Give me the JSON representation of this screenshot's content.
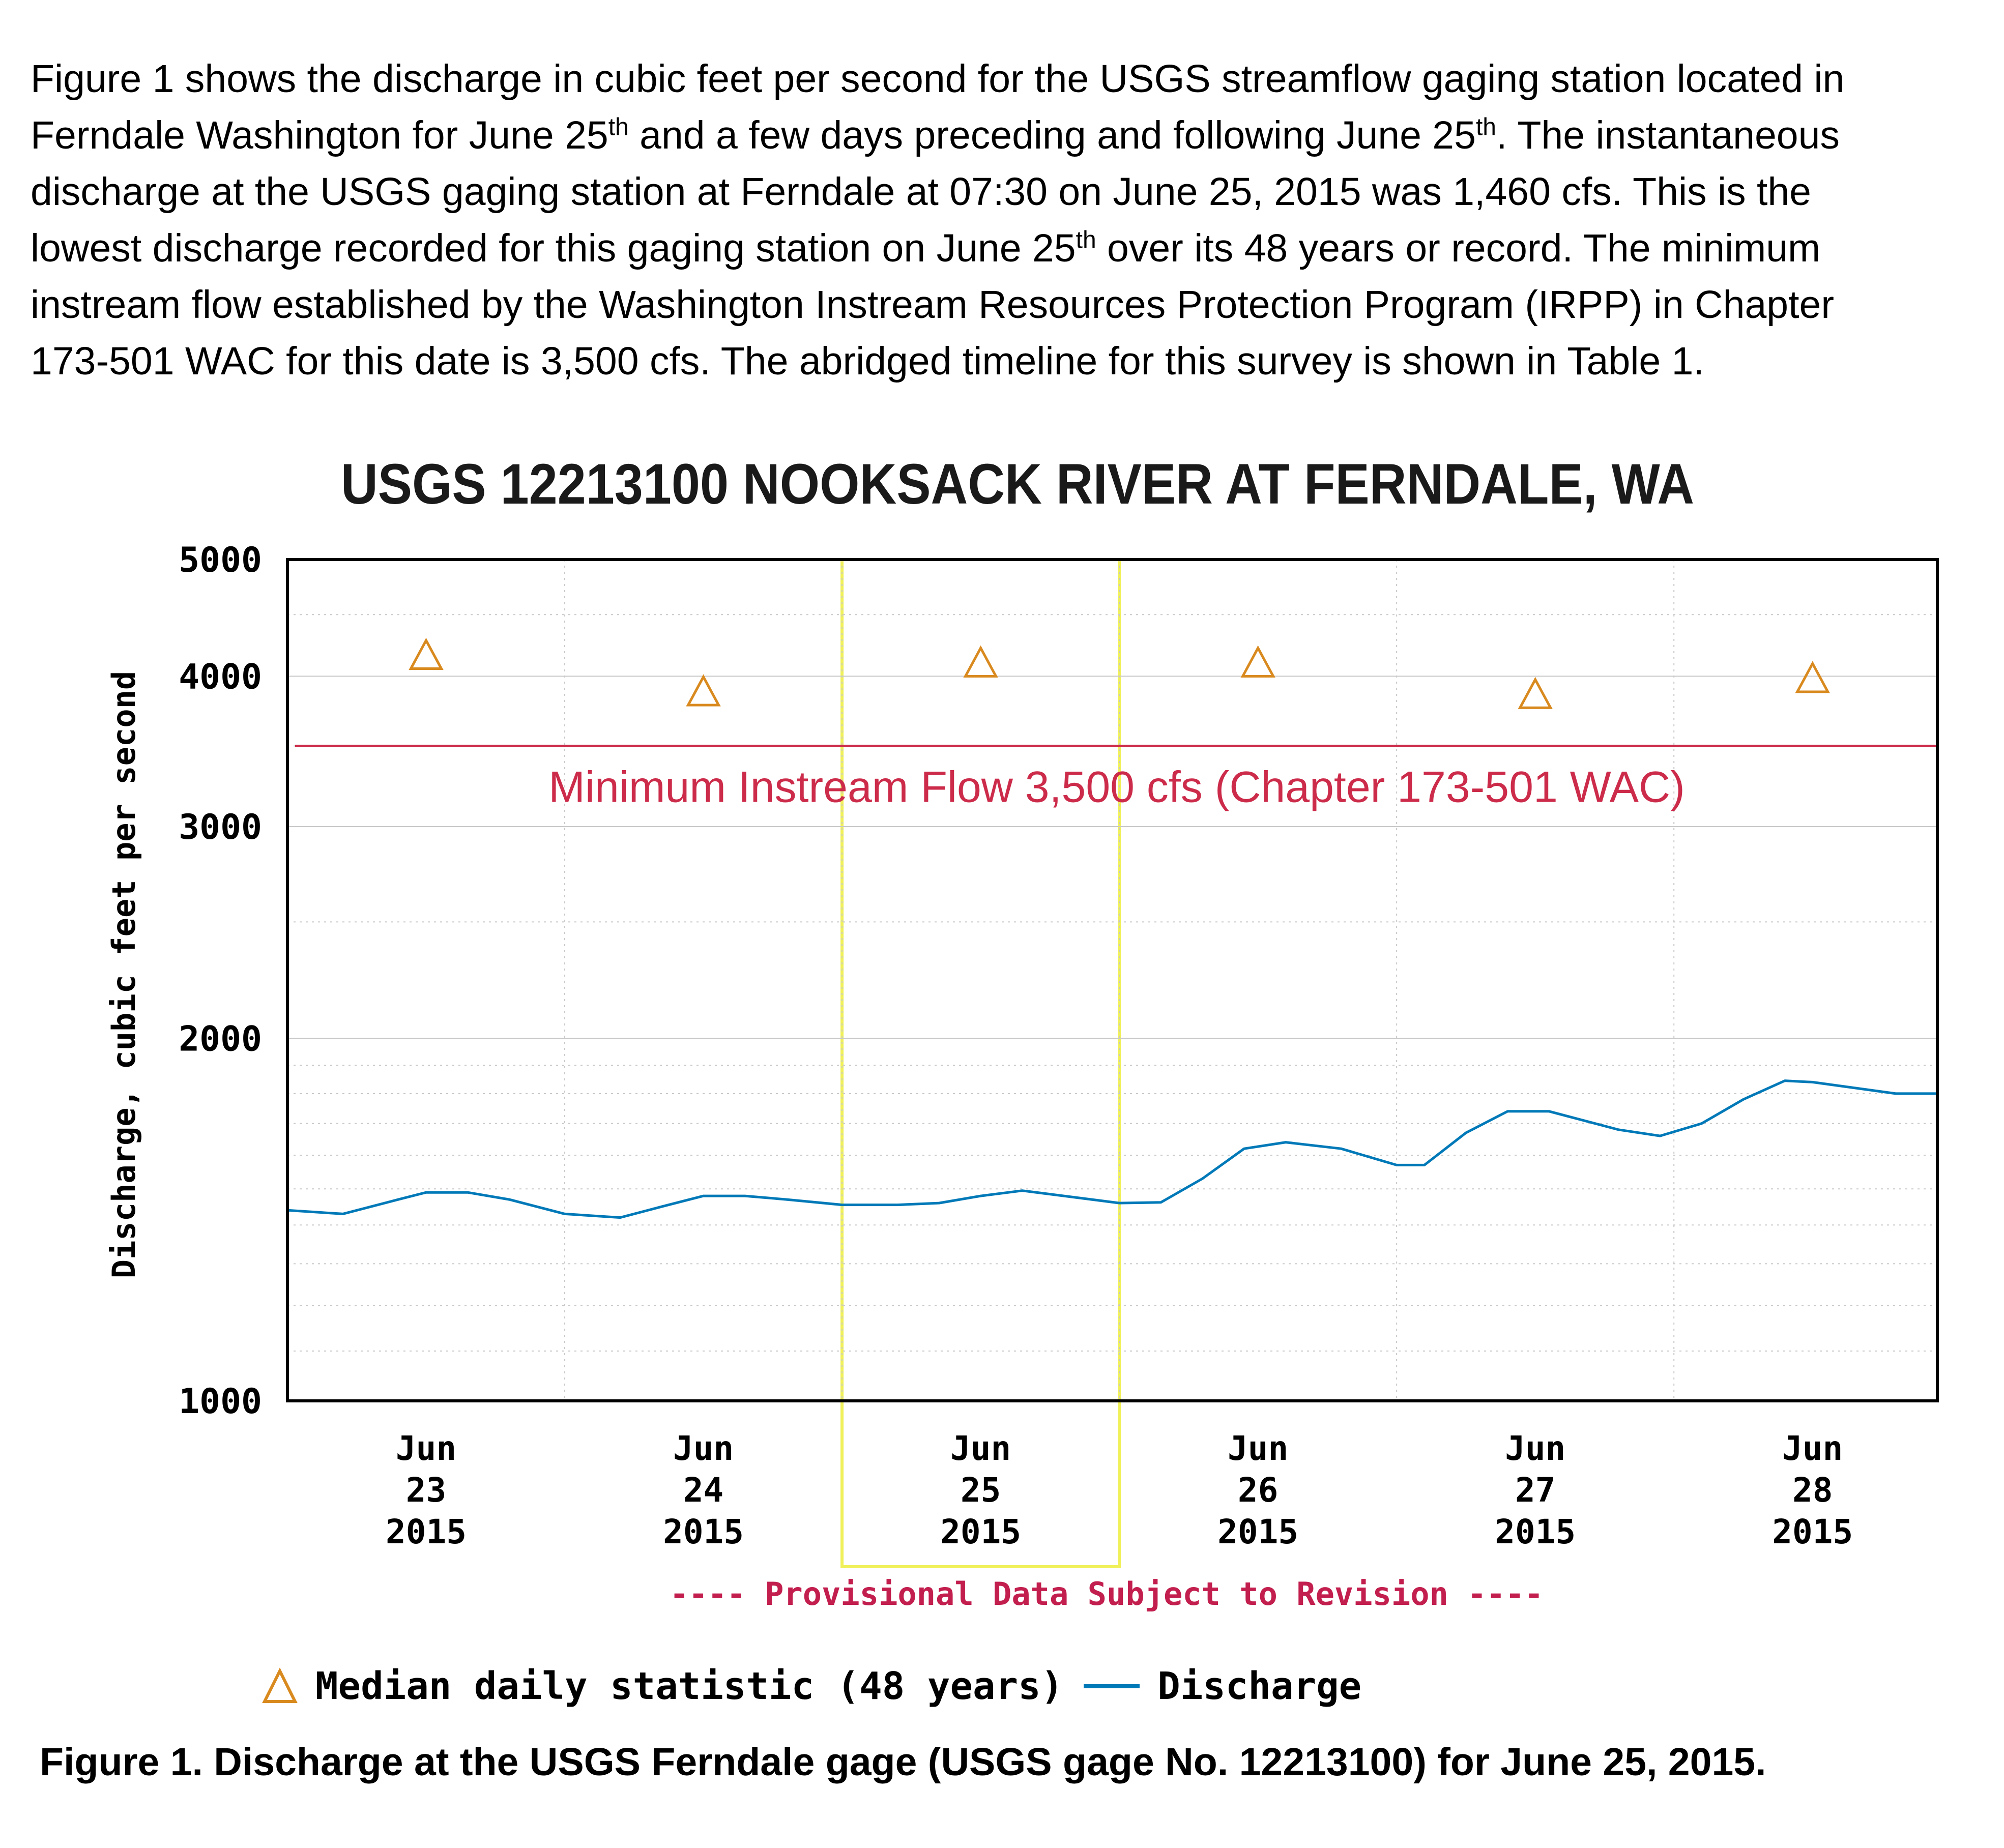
{
  "intro": {
    "l1": "Figure 1 shows the discharge in cubic feet per second for the USGS streamflow gaging station located in",
    "l2a": "Ferndale Washington for June 25",
    "l2sup": "th",
    "l2b": " and a few days preceding and following June 25",
    "l2sup2": "th",
    "l2c": ".  The instantaneous",
    "l3": "discharge at the USGS gaging station at Ferndale at 07:30 on June 25, 2015 was 1,460 cfs.  This is the",
    "l4a": "lowest discharge recorded for this gaging station on June 25",
    "l4sup": "th",
    "l4b": " over its 48 years or record.  The minimum",
    "l5": "instream flow established by the Washington Instream Resources Protection Program (IRPP) in Chapter",
    "l6": "173-501 WAC for this date is 3,500 cfs.  The abridged timeline for this survey is shown in Table 1."
  },
  "chart_data": {
    "type": "line",
    "title": "USGS 12213100 NOOKSACK RIVER AT FERNDALE, WA",
    "ylabel": "Discharge, cubic feet per second",
    "yscale": "log",
    "ylim": [
      1000,
      5000
    ],
    "yticks": [
      "1000",
      "2000",
      "3000",
      "4000",
      "5000"
    ],
    "xlim": [
      22.5,
      28.45
    ],
    "x_ticks": [
      {
        "x": 23,
        "month": "Jun",
        "day": "23",
        "year": "2015"
      },
      {
        "x": 24,
        "month": "Jun",
        "day": "24",
        "year": "2015"
      },
      {
        "x": 25,
        "month": "Jun",
        "day": "25",
        "year": "2015"
      },
      {
        "x": 26,
        "month": "Jun",
        "day": "26",
        "year": "2015"
      },
      {
        "x": 27,
        "month": "Jun",
        "day": "27",
        "year": "2015"
      },
      {
        "x": 28,
        "month": "Jun",
        "day": "28",
        "year": "2015"
      }
    ],
    "highlight_range": [
      24.5,
      25.5
    ],
    "threshold": {
      "value": 3500,
      "label": "Minimum Instream Flow 3,500 cfs (Chapter 173-501 WAC)"
    },
    "median_series": {
      "name": "Median daily statistic (48 years)",
      "x": [
        23,
        24,
        25,
        26,
        27,
        28
      ],
      "values": [
        4160,
        3880,
        4100,
        4100,
        3860,
        3980
      ]
    },
    "discharge_series": {
      "name": "Discharge",
      "x": [
        22.5,
        22.7,
        22.9,
        23.0,
        23.15,
        23.3,
        23.5,
        23.7,
        23.85,
        24.0,
        24.15,
        24.3,
        24.5,
        24.7,
        24.85,
        25.0,
        25.15,
        25.3,
        25.5,
        25.65,
        25.8,
        25.95,
        26.1,
        26.3,
        26.5,
        26.6,
        26.75,
        26.9,
        27.05,
        27.3,
        27.45,
        27.6,
        27.75,
        27.9,
        28.0,
        28.15,
        28.3,
        28.45
      ],
      "values": [
        1440,
        1430,
        1470,
        1490,
        1490,
        1470,
        1430,
        1420,
        1450,
        1480,
        1480,
        1470,
        1455,
        1455,
        1460,
        1480,
        1495,
        1480,
        1460,
        1462,
        1530,
        1620,
        1640,
        1620,
        1570,
        1570,
        1670,
        1740,
        1740,
        1680,
        1660,
        1700,
        1780,
        1845,
        1840,
        1820,
        1800,
        1800
      ]
    },
    "footnote": "---- Provisional Data Subject to Revision ----",
    "colors": {
      "discharge": "#0079b8",
      "median": "#d98a1f",
      "threshold": "#cc2b4a",
      "highlight": "#f0f05a",
      "footnote": "#c21e4e",
      "grid": "#c8c8c8"
    }
  },
  "legend": {
    "median_label": "Median daily statistic (48 years)",
    "discharge_label": "Discharge"
  },
  "caption": "Figure 1.  Discharge at the USGS Ferndale gage (USGS gage No. 12213100) for June 25, 2015."
}
